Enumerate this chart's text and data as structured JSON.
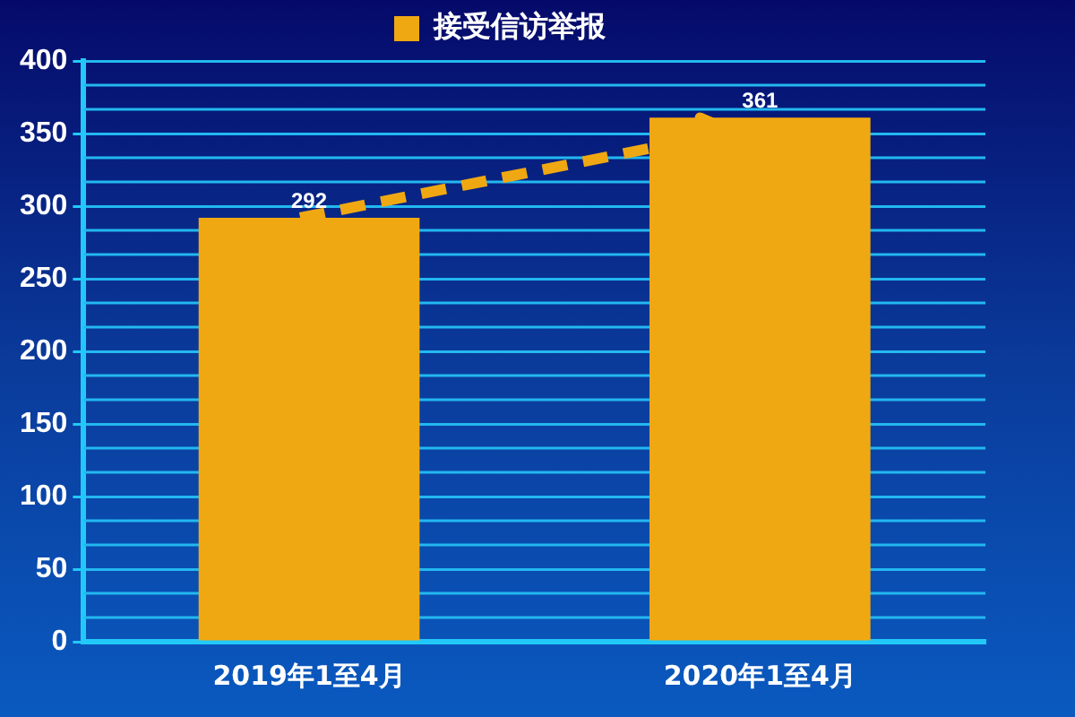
{
  "chart_data": {
    "type": "bar",
    "categories": [
      "2019年1至4月",
      "2020年1至4月"
    ],
    "series": [
      {
        "name": "接受信访举报",
        "color": "#f0a812",
        "values": [
          292,
          361
        ]
      }
    ],
    "ylim": [
      0,
      400
    ],
    "yticks": [
      0,
      50,
      100,
      150,
      200,
      250,
      300,
      350,
      400
    ],
    "grid": true,
    "legend": "top",
    "data_labels": true
  }
}
